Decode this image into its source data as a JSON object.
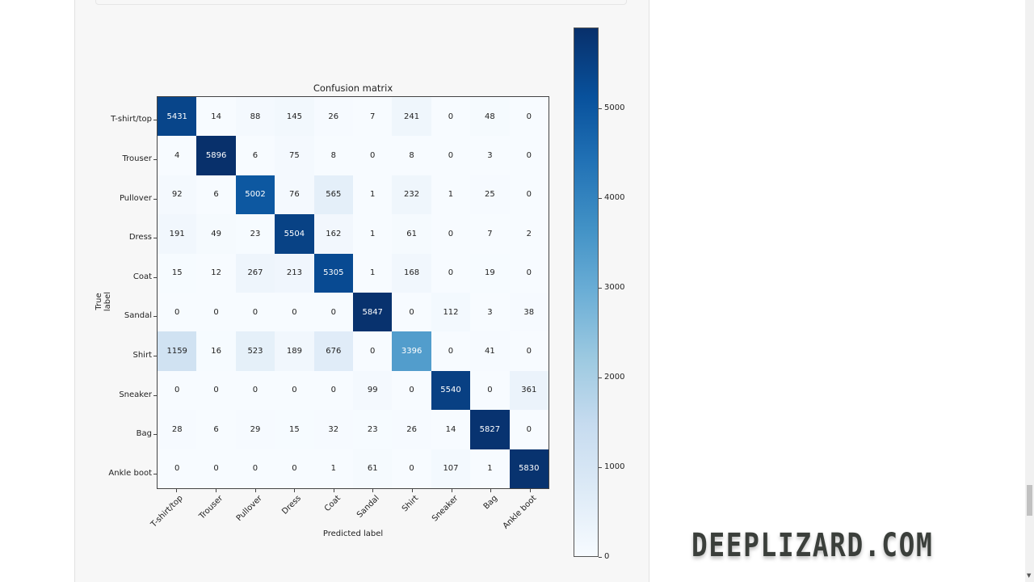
{
  "chart_data": {
    "type": "heatmap",
    "title": "Confusion matrix",
    "xlabel": "Predicted label",
    "ylabel": "True label",
    "x_categories": [
      "T-shirt/top",
      "Trouser",
      "Pullover",
      "Dress",
      "Coat",
      "Sandal",
      "Shirt",
      "Sneaker",
      "Bag",
      "Ankle boot"
    ],
    "y_categories": [
      "T-shirt/top",
      "Trouser",
      "Pullover",
      "Dress",
      "Coat",
      "Sandal",
      "Shirt",
      "Sneaker",
      "Bag",
      "Ankle boot"
    ],
    "values": [
      [
        5431,
        14,
        88,
        145,
        26,
        7,
        241,
        0,
        48,
        0
      ],
      [
        4,
        5896,
        6,
        75,
        8,
        0,
        8,
        0,
        3,
        0
      ],
      [
        92,
        6,
        5002,
        76,
        565,
        1,
        232,
        1,
        25,
        0
      ],
      [
        191,
        49,
        23,
        5504,
        162,
        1,
        61,
        0,
        7,
        2
      ],
      [
        15,
        12,
        267,
        213,
        5305,
        1,
        168,
        0,
        19,
        0
      ],
      [
        0,
        0,
        0,
        0,
        0,
        5847,
        0,
        112,
        3,
        38
      ],
      [
        1159,
        16,
        523,
        189,
        676,
        0,
        3396,
        0,
        41,
        0
      ],
      [
        0,
        0,
        0,
        0,
        0,
        99,
        0,
        5540,
        0,
        361
      ],
      [
        28,
        6,
        29,
        15,
        32,
        23,
        26,
        14,
        5827,
        0
      ],
      [
        0,
        0,
        0,
        0,
        1,
        61,
        0,
        107,
        1,
        5830
      ]
    ],
    "colormap": "Blues",
    "colorbar": {
      "min": 0,
      "max": 5896,
      "ticks": [
        0,
        1000,
        2000,
        3000,
        4000,
        5000
      ]
    },
    "grid": false
  },
  "watermark": "DEEPLIZARD.COM"
}
